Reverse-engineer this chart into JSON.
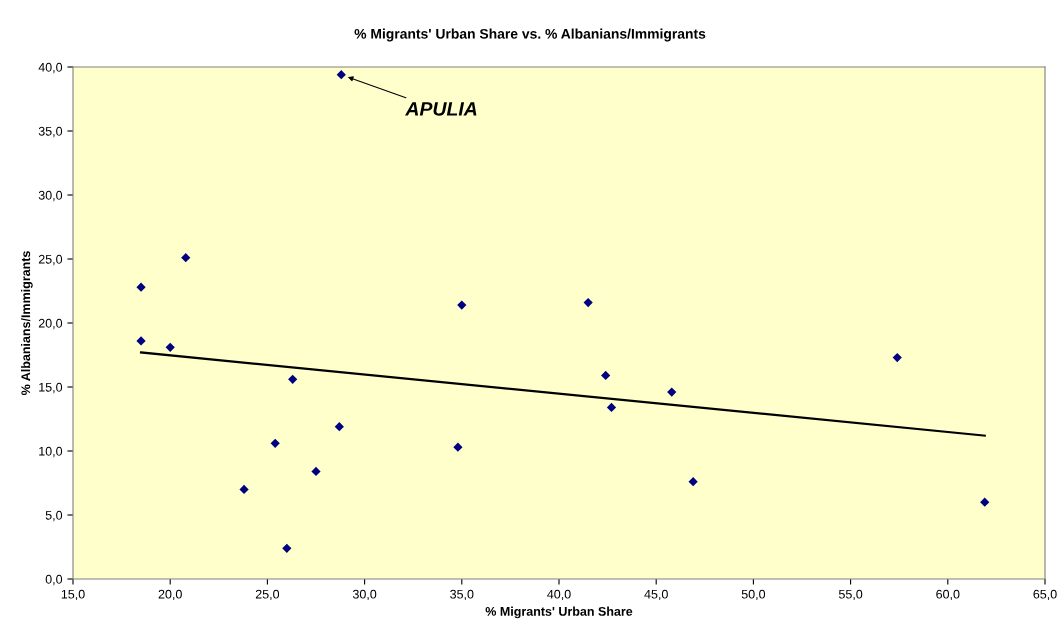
{
  "chart_data": {
    "type": "scatter",
    "title": "% Migrants' Urban Share vs. % Albanians/Immigrants",
    "xlabel": "% Migrants' Urban Share",
    "ylabel": "% Albanians/Immigrants",
    "series": [
      {
        "color": "#000080",
        "marker": "diamond",
        "x": [
          28.8,
          18.5,
          20.8,
          18.5,
          20.0,
          26.3,
          28.7,
          25.4,
          35.0,
          34.8,
          27.5,
          23.8,
          26.0,
          41.5,
          42.4,
          42.7,
          45.8,
          46.9,
          57.4,
          61.9
        ],
        "values": [
          39.4,
          22.8,
          25.1,
          18.6,
          18.1,
          15.6,
          11.9,
          10.6,
          21.4,
          10.3,
          8.4,
          7.0,
          2.4,
          21.6,
          15.9,
          13.4,
          14.6,
          7.6,
          17.3,
          6.0
        ]
      },
      {
        "type": "line",
        "color": "#000000",
        "marker": "none",
        "line_style": "solid",
        "x": [
          18.5,
          61.9
        ],
        "values": [
          17.7,
          11.2
        ]
      }
    ],
    "annotations": [
      {
        "text": "APULIA",
        "x": 28.8,
        "y": 39.4
      }
    ],
    "xlim": [
      15,
      65
    ],
    "xticks": [
      {
        "value": 15,
        "label": "15,0"
      },
      {
        "value": 20,
        "label": "20,0"
      },
      {
        "value": 25,
        "label": "25,0"
      },
      {
        "value": 30,
        "label": "30,0"
      },
      {
        "value": 35,
        "label": "35,0"
      },
      {
        "value": 40,
        "label": "40,0"
      },
      {
        "value": 45,
        "label": "45,0"
      },
      {
        "value": 50,
        "label": "50,0"
      },
      {
        "value": 55,
        "label": "55,0"
      },
      {
        "value": 60,
        "label": "60,0"
      },
      {
        "value": 65,
        "label": "65,0"
      }
    ],
    "ylim": [
      0,
      40
    ],
    "yticks": [
      {
        "value": 0,
        "label": "0,0"
      },
      {
        "value": 5,
        "label": "5,0"
      },
      {
        "value": 10,
        "label": "10,0"
      },
      {
        "value": 15,
        "label": "15,0"
      },
      {
        "value": 20,
        "label": "20,0"
      },
      {
        "value": 25,
        "label": "25,0"
      },
      {
        "value": 30,
        "label": "30,0"
      },
      {
        "value": 35,
        "label": "35,0"
      },
      {
        "value": 40,
        "label": "40,0"
      }
    ],
    "grid": false
  }
}
